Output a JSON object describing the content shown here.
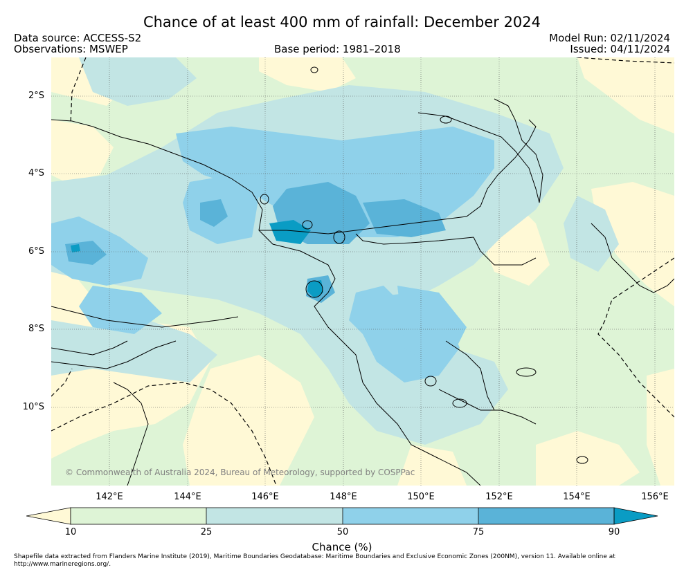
{
  "header": {
    "title": "Chance of at least 400 mm of rainfall: December 2024",
    "data_source": "Data source: ACCESS-S2",
    "observations": "Observations: MSWEP",
    "base_period": "Base period: 1981–2018",
    "model_run": "Model Run: 02/11/2024",
    "issued": "Issued: 04/11/2024"
  },
  "map": {
    "lat_labels": [
      "2°S",
      "4°S",
      "6°S",
      "8°S",
      "10°S"
    ],
    "lon_labels": [
      "142°E",
      "144°E",
      "146°E",
      "148°E",
      "150°E",
      "152°E",
      "154°E",
      "156°E"
    ],
    "copyright": "© Commonwealth of Australia 2024, Bureau of Meteorology, supported by COSPPac",
    "region_extent": {
      "lon": [
        140.5,
        156.5
      ],
      "lat": [
        -12.0,
        -1.0
      ]
    }
  },
  "colorbar": {
    "label": "Chance (%)",
    "ticks": [
      "10",
      "25",
      "50",
      "75",
      "90"
    ],
    "bins": [
      {
        "range": "<10",
        "color": "#fff9d6"
      },
      {
        "range": "10–25",
        "color": "#def4d6"
      },
      {
        "range": "25–50",
        "color": "#c2e5e4"
      },
      {
        "range": "50–75",
        "color": "#8fd1ea"
      },
      {
        "range": "75–90",
        "color": "#5ab3d8"
      },
      {
        "range": ">90",
        "color": "#0a9cc4"
      }
    ]
  },
  "footer": {
    "shapefile_note": "Shapefile data extracted from Flanders Marine Institute (2019), Maritime Boundaries Geodatabase: Maritime Boundaries and Exclusive Economic Zones (200NM), version 11. Available online at http://www.marineregions.org/."
  }
}
